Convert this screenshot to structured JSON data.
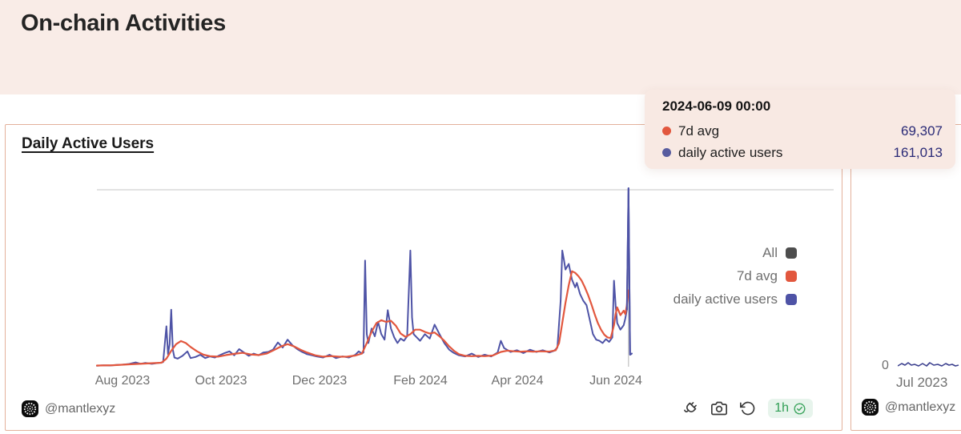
{
  "page": {
    "title": "On-chain Activities"
  },
  "tooltip": {
    "title": "2024-06-09 00:00",
    "rows": [
      {
        "label": "7d avg",
        "value": "69,307",
        "color": "#e2573e"
      },
      {
        "label": "daily active users",
        "value": "161,013",
        "color": "#585c9f"
      }
    ]
  },
  "main_card": {
    "title": "Daily Active Users",
    "watermark": "@mantlexyz",
    "refresh_age": "1h",
    "legend": [
      {
        "label": "All",
        "color": "#4d4d4d"
      },
      {
        "label": "7d avg",
        "color": "#e2573e"
      },
      {
        "label": "daily active users",
        "color": "#4e53a6"
      }
    ]
  },
  "side_card": {
    "y_tick": "0",
    "x_tick": "Jul 2023",
    "watermark": "@mantlexyz",
    "mini_points": [
      [
        0,
        6
      ],
      [
        5,
        3
      ],
      [
        9,
        5
      ],
      [
        13,
        2
      ],
      [
        17,
        5
      ],
      [
        21,
        4
      ],
      [
        26,
        6
      ],
      [
        31,
        3
      ],
      [
        36,
        6
      ],
      [
        40,
        2
      ],
      [
        45,
        5
      ],
      [
        50,
        4
      ],
      [
        55,
        6
      ],
      [
        60,
        3
      ],
      [
        64,
        5
      ],
      [
        68,
        4
      ],
      [
        72,
        6
      ],
      [
        76,
        5
      ]
    ]
  },
  "colors": {
    "header_bg": "#f9ece7",
    "tooltip_bg": "#f8e9e3",
    "card_border": "#e3b19b",
    "gridline": "#d9d9d9",
    "crosshair": "#bfbfbf",
    "value_text": "#2b2b77",
    "green": "#2f9e54"
  },
  "chart_data": {
    "type": "line",
    "title": "Daily Active Users",
    "x_axis": {
      "start_date": "2023-07-16",
      "end_date": "2024-06-13",
      "ticks": [
        {
          "label": "Aug 2023",
          "day": 16
        },
        {
          "label": "Oct 2023",
          "day": 77
        },
        {
          "label": "Dec 2023",
          "day": 138
        },
        {
          "label": "Feb 2024",
          "day": 200
        },
        {
          "label": "Apr 2024",
          "day": 260
        },
        {
          "label": "Jun 2024",
          "day": 321
        }
      ]
    },
    "y_axis": {
      "min": 0,
      "max": 161013,
      "gridlines": "top-only"
    },
    "legend_position": "right",
    "hover": {
      "date": "2024-06-09 00:00",
      "day": 329,
      "values": {
        "7d avg": 69307,
        "daily active users": 161013
      }
    },
    "series": [
      {
        "name": "daily active users",
        "color": "#4e53a6",
        "points": [
          [
            0,
            1600
          ],
          [
            4,
            2000
          ],
          [
            8,
            1800
          ],
          [
            12,
            2400
          ],
          [
            16,
            2600
          ],
          [
            20,
            3200
          ],
          [
            24,
            4600
          ],
          [
            27,
            3400
          ],
          [
            30,
            4200
          ],
          [
            34,
            3300
          ],
          [
            38,
            4100
          ],
          [
            41,
            4800
          ],
          [
            43,
            37000
          ],
          [
            44,
            12000
          ],
          [
            45,
            21000
          ],
          [
            46,
            52000
          ],
          [
            47,
            16000
          ],
          [
            48,
            9000
          ],
          [
            50,
            8000
          ],
          [
            53,
            10500
          ],
          [
            56,
            14500
          ],
          [
            58,
            8500
          ],
          [
            61,
            9500
          ],
          [
            64,
            11500
          ],
          [
            67,
            8500
          ],
          [
            70,
            10000
          ],
          [
            73,
            9000
          ],
          [
            76,
            11000
          ],
          [
            79,
            13000
          ],
          [
            82,
            14500
          ],
          [
            85,
            11000
          ],
          [
            88,
            16500
          ],
          [
            91,
            13500
          ],
          [
            94,
            10500
          ],
          [
            97,
            12500
          ],
          [
            100,
            11000
          ],
          [
            103,
            13500
          ],
          [
            106,
            14000
          ],
          [
            109,
            16000
          ],
          [
            112,
            22500
          ],
          [
            115,
            18000
          ],
          [
            118,
            25000
          ],
          [
            121,
            20000
          ],
          [
            124,
            16500
          ],
          [
            127,
            14000
          ],
          [
            130,
            12000
          ],
          [
            133,
            11000
          ],
          [
            136,
            10000
          ],
          [
            140,
            9000
          ],
          [
            144,
            11500
          ],
          [
            148,
            8500
          ],
          [
            152,
            10000
          ],
          [
            156,
            9000
          ],
          [
            160,
            11500
          ],
          [
            162,
            14500
          ],
          [
            164,
            12500
          ],
          [
            165,
            13500
          ],
          [
            166,
            96000
          ],
          [
            167,
            30000
          ],
          [
            168,
            22000
          ],
          [
            170,
            35000
          ],
          [
            172,
            28000
          ],
          [
            174,
            41000
          ],
          [
            176,
            30000
          ],
          [
            178,
            25000
          ],
          [
            180,
            51500
          ],
          [
            182,
            35000
          ],
          [
            184,
            27000
          ],
          [
            186,
            22000
          ],
          [
            188,
            26000
          ],
          [
            190,
            24000
          ],
          [
            192,
            28000
          ],
          [
            194,
            105000
          ],
          [
            195,
            45000
          ],
          [
            196,
            30000
          ],
          [
            198,
            27000
          ],
          [
            200,
            24000
          ],
          [
            203,
            30000
          ],
          [
            206,
            26000
          ],
          [
            209,
            38500
          ],
          [
            212,
            30000
          ],
          [
            215,
            22000
          ],
          [
            218,
            16000
          ],
          [
            221,
            13000
          ],
          [
            224,
            11000
          ],
          [
            228,
            10000
          ],
          [
            232,
            12500
          ],
          [
            236,
            9500
          ],
          [
            240,
            11500
          ],
          [
            244,
            10000
          ],
          [
            248,
            13500
          ],
          [
            250,
            24000
          ],
          [
            252,
            17500
          ],
          [
            256,
            14000
          ],
          [
            260,
            15500
          ],
          [
            264,
            13000
          ],
          [
            268,
            16000
          ],
          [
            272,
            14000
          ],
          [
            276,
            15500
          ],
          [
            280,
            13500
          ],
          [
            283,
            15000
          ],
          [
            285,
            18000
          ],
          [
            287,
            60000
          ],
          [
            288,
            105000
          ],
          [
            289,
            97000
          ],
          [
            290,
            88000
          ],
          [
            292,
            93000
          ],
          [
            294,
            79000
          ],
          [
            296,
            72000
          ],
          [
            297,
            76000
          ],
          [
            299,
            66000
          ],
          [
            301,
            60000
          ],
          [
            303,
            56000
          ],
          [
            305,
            43000
          ],
          [
            307,
            30000
          ],
          [
            309,
            25000
          ],
          [
            311,
            24000
          ],
          [
            313,
            22000
          ],
          [
            315,
            25500
          ],
          [
            317,
            23000
          ],
          [
            319,
            27000
          ],
          [
            320,
            78000
          ],
          [
            321,
            56000
          ],
          [
            322,
            40000
          ],
          [
            324,
            34000
          ],
          [
            326,
            38000
          ],
          [
            327,
            44000
          ],
          [
            328,
            52000
          ],
          [
            329,
            161013
          ],
          [
            330,
            11500
          ],
          [
            331,
            12500
          ]
        ]
      },
      {
        "name": "7d avg",
        "color": "#e2573e",
        "points": [
          [
            0,
            1800
          ],
          [
            10,
            2100
          ],
          [
            20,
            2900
          ],
          [
            30,
            3600
          ],
          [
            40,
            4300
          ],
          [
            43,
            8000
          ],
          [
            46,
            15000
          ],
          [
            49,
            21000
          ],
          [
            52,
            23800
          ],
          [
            55,
            22000
          ],
          [
            58,
            18500
          ],
          [
            62,
            14500
          ],
          [
            66,
            11500
          ],
          [
            70,
            10200
          ],
          [
            75,
            9800
          ],
          [
            80,
            11200
          ],
          [
            85,
            12300
          ],
          [
            90,
            13200
          ],
          [
            95,
            11800
          ],
          [
            100,
            11200
          ],
          [
            105,
            12500
          ],
          [
            110,
            16000
          ],
          [
            114,
            19000
          ],
          [
            118,
            21000
          ],
          [
            122,
            19000
          ],
          [
            126,
            16000
          ],
          [
            130,
            13500
          ],
          [
            135,
            11000
          ],
          [
            140,
            9800
          ],
          [
            145,
            10300
          ],
          [
            150,
            9700
          ],
          [
            155,
            9800
          ],
          [
            160,
            10800
          ],
          [
            164,
            12500
          ],
          [
            167,
            22000
          ],
          [
            170,
            32000
          ],
          [
            173,
            40000
          ],
          [
            176,
            42500
          ],
          [
            179,
            41000
          ],
          [
            182,
            42000
          ],
          [
            185,
            37500
          ],
          [
            188,
            30500
          ],
          [
            191,
            27500
          ],
          [
            194,
            30000
          ],
          [
            197,
            34000
          ],
          [
            200,
            34000
          ],
          [
            203,
            32000
          ],
          [
            206,
            30500
          ],
          [
            209,
            31500
          ],
          [
            212,
            28000
          ],
          [
            215,
            24000
          ],
          [
            218,
            19000
          ],
          [
            221,
            15000
          ],
          [
            224,
            12000
          ],
          [
            228,
            10500
          ],
          [
            232,
            10200
          ],
          [
            236,
            10500
          ],
          [
            240,
            10200
          ],
          [
            245,
            10800
          ],
          [
            250,
            14000
          ],
          [
            254,
            15200
          ],
          [
            258,
            14600
          ],
          [
            262,
            14200
          ],
          [
            266,
            14600
          ],
          [
            270,
            14200
          ],
          [
            275,
            14600
          ],
          [
            280,
            14300
          ],
          [
            284,
            15500
          ],
          [
            286,
            22000
          ],
          [
            288,
            40000
          ],
          [
            290,
            58000
          ],
          [
            292,
            74000
          ],
          [
            294,
            86500
          ],
          [
            296,
            85000
          ],
          [
            298,
            82000
          ],
          [
            300,
            78000
          ],
          [
            302,
            72000
          ],
          [
            304,
            65000
          ],
          [
            306,
            57000
          ],
          [
            308,
            48000
          ],
          [
            310,
            40000
          ],
          [
            312,
            34000
          ],
          [
            314,
            29500
          ],
          [
            316,
            27000
          ],
          [
            318,
            26500
          ],
          [
            320,
            38000
          ],
          [
            321,
            48000
          ],
          [
            322,
            54000
          ],
          [
            324,
            47000
          ],
          [
            326,
            51000
          ],
          [
            327,
            48000
          ],
          [
            328,
            56000
          ],
          [
            329,
            69307
          ]
        ]
      }
    ]
  }
}
